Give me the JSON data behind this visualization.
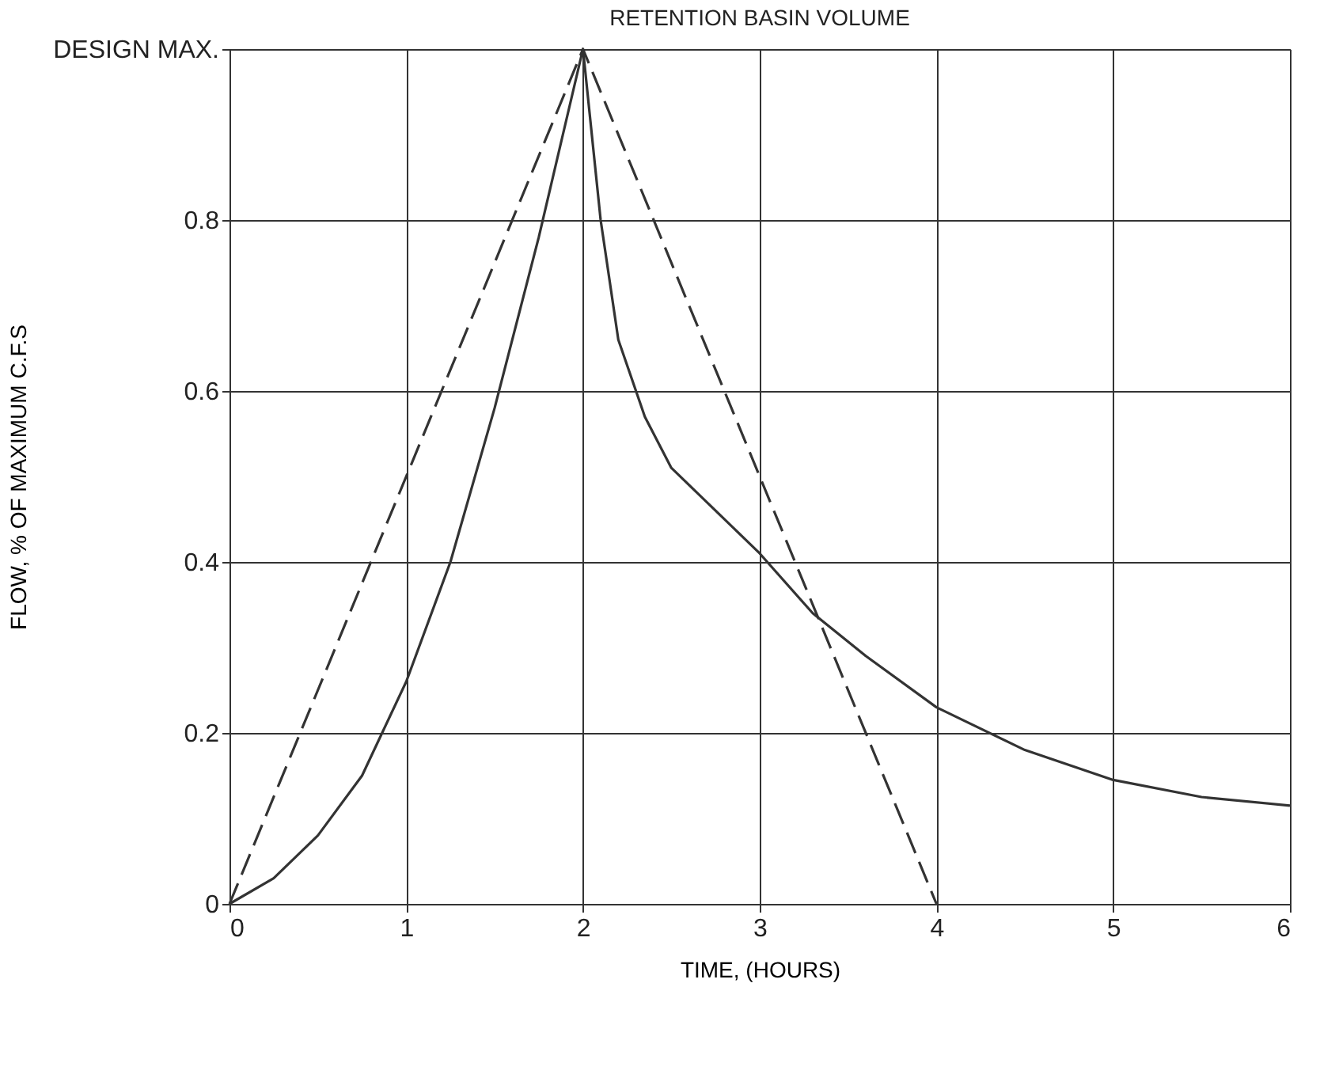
{
  "chart_data": {
    "type": "line",
    "title": "RETENTION BASIN VOLUME",
    "xlabel": "TIME, (HOURS)",
    "ylabel": "FLOW, % OF MAXIMUM C.F.S",
    "xlim": [
      0,
      6
    ],
    "xticks": [
      0,
      1,
      2,
      3,
      4,
      5,
      6
    ],
    "ylim": [
      0,
      1
    ],
    "yticks": [
      0,
      0.2,
      0.4,
      0.6,
      0.8,
      {
        "value": 1,
        "label": "DESIGN MAX."
      }
    ],
    "grid": true,
    "marker": "none",
    "series": [
      {
        "color": "#333333",
        "line_style": "dashed",
        "x": [
          0,
          2,
          4
        ],
        "values": [
          0,
          1,
          0
        ]
      },
      {
        "color": "#333333",
        "line_style": "solid",
        "x": [
          0,
          0.25,
          0.5,
          0.75,
          1,
          1.25,
          1.5,
          1.75,
          2,
          2.1,
          2.2,
          2.35,
          2.5,
          2.75,
          3,
          3.3,
          3.6,
          4,
          4.5,
          5,
          5.5,
          6
        ],
        "values": [
          0,
          0.03,
          0.08,
          0.15,
          0.26,
          0.4,
          0.58,
          0.78,
          1,
          0.8,
          0.66,
          0.57,
          0.51,
          0.46,
          0.41,
          0.34,
          0.29,
          0.23,
          0.18,
          0.145,
          0.125,
          0.115
        ]
      }
    ]
  }
}
